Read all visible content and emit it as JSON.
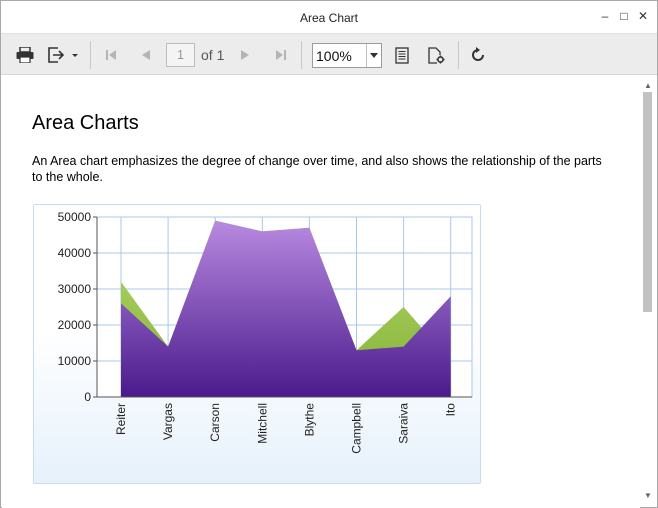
{
  "window": {
    "title": "Area Chart",
    "minimize_label": "–",
    "maximize_label": "□",
    "close_label": "✕"
  },
  "toolbar": {
    "icons": [
      "print-icon",
      "export-icon",
      "first-page-icon",
      "previous-page-icon",
      "next-page-icon",
      "last-page-icon",
      "page-layout-icon",
      "page-setup-icon",
      "refresh-icon"
    ],
    "page_number": "1",
    "page_of": "of 1",
    "zoom": "100%"
  },
  "report": {
    "heading": "Area Charts",
    "description": "An Area chart emphasizes the degree of change over time, and also shows the relationship of the parts to the whole."
  },
  "colors": {
    "series_green": "#9cc74a",
    "series_purple_top": "#b88ae0",
    "series_purple_bottom": "#4a1a8c",
    "grid": "#a9c8e8"
  },
  "chart_data": {
    "type": "area",
    "categories": [
      "Reiter",
      "Vargas",
      "Carson",
      "Mitchell",
      "Blythe",
      "Campbell",
      "Saraiva",
      "Ito"
    ],
    "series": [
      {
        "values": [
          32000,
          14000,
          49000,
          46000,
          47000,
          13000,
          25000,
          10000
        ]
      },
      {
        "values": [
          26000,
          14000,
          49000,
          46000,
          47000,
          13000,
          14000,
          28000
        ]
      }
    ],
    "ylim": [
      0,
      50000
    ],
    "yticks": [
      "50000",
      "40000",
      "30000",
      "20000",
      "10000",
      "0"
    ],
    "grid": true,
    "legend": "none"
  }
}
